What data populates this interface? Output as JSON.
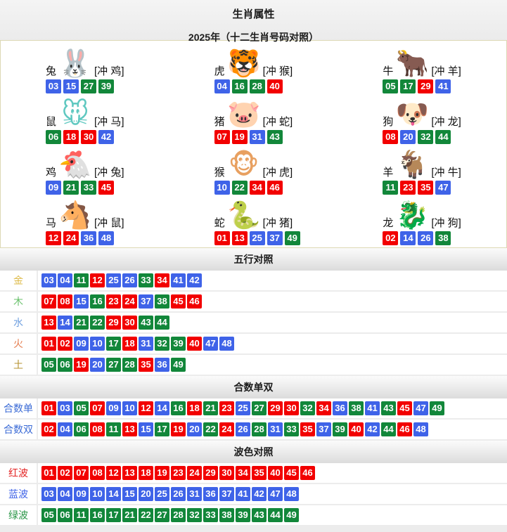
{
  "header": {
    "title": "生肖属性",
    "subtitle": "2025年（十二生肖号码对照）"
  },
  "zodiac_panel": {
    "cells": [
      {
        "name": "兔",
        "clash": "[冲 鸡]",
        "icon": "rabbit-icon",
        "icon_glyph": "🐰",
        "icon_color": "#9f8fe8",
        "numbers": [
          "03",
          "15",
          "27",
          "39"
        ]
      },
      {
        "name": "虎",
        "clash": "[冲 猴]",
        "icon": "tiger-icon",
        "icon_glyph": "🐯",
        "icon_color": "#e8962e",
        "numbers": [
          "04",
          "16",
          "28",
          "40"
        ]
      },
      {
        "name": "牛",
        "clash": "[冲 羊]",
        "icon": "ox-icon",
        "icon_glyph": "🐂",
        "icon_color": "#ef8fa0",
        "numbers": [
          "05",
          "17",
          "29",
          "41"
        ]
      },
      {
        "name": "鼠",
        "clash": "[冲 马]",
        "icon": "rat-icon",
        "icon_glyph": "🐭",
        "icon_color": "#5fc8c0",
        "numbers": [
          "06",
          "18",
          "30",
          "42"
        ]
      },
      {
        "name": "猪",
        "clash": "[冲 蛇]",
        "icon": "pig-icon",
        "icon_glyph": "🐷",
        "icon_color": "#f2a0c0",
        "numbers": [
          "07",
          "19",
          "31",
          "43"
        ]
      },
      {
        "name": "狗",
        "clash": "[冲 龙]",
        "icon": "dog-icon",
        "icon_glyph": "🐶",
        "icon_color": "#8fb8e8",
        "numbers": [
          "08",
          "20",
          "32",
          "44"
        ]
      },
      {
        "name": "鸡",
        "clash": "[冲 兔]",
        "icon": "rooster-icon",
        "icon_glyph": "🐔",
        "icon_color": "#c8a02e",
        "numbers": [
          "09",
          "21",
          "33",
          "45"
        ]
      },
      {
        "name": "猴",
        "clash": "[冲 虎]",
        "icon": "monkey-icon",
        "icon_glyph": "🐵",
        "icon_color": "#e8a060",
        "numbers": [
          "10",
          "22",
          "34",
          "46"
        ]
      },
      {
        "name": "羊",
        "clash": "[冲 牛]",
        "icon": "goat-icon",
        "icon_glyph": "🐐",
        "icon_color": "#e8c22e",
        "numbers": [
          "11",
          "23",
          "35",
          "47"
        ]
      },
      {
        "name": "马",
        "clash": "[冲 鼠]",
        "icon": "horse-icon",
        "icon_glyph": "🐴",
        "icon_color": "#d83020",
        "numbers": [
          "12",
          "24",
          "36",
          "48"
        ]
      },
      {
        "name": "蛇",
        "clash": "[冲 猪]",
        "icon": "snake-icon",
        "icon_glyph": "🐍",
        "icon_color": "#58a828",
        "numbers": [
          "01",
          "13",
          "25",
          "37",
          "49"
        ]
      },
      {
        "name": "龙",
        "clash": "[冲 狗]",
        "icon": "dragon-icon",
        "icon_glyph": "🐉",
        "icon_color": "#f08828",
        "numbers": [
          "02",
          "14",
          "26",
          "38"
        ]
      }
    ]
  },
  "sections": [
    {
      "title": "五行对照",
      "rows": [
        {
          "label": "金",
          "label_color": "#debb4a",
          "numbers": [
            "03",
            "04",
            "11",
            "12",
            "25",
            "26",
            "33",
            "34",
            "41",
            "42"
          ]
        },
        {
          "label": "木",
          "label_color": "#68c06a",
          "numbers": [
            "07",
            "08",
            "15",
            "16",
            "23",
            "24",
            "37",
            "38",
            "45",
            "46"
          ]
        },
        {
          "label": "水",
          "label_color": "#70a0e0",
          "numbers": [
            "13",
            "14",
            "21",
            "22",
            "29",
            "30",
            "43",
            "44"
          ]
        },
        {
          "label": "火",
          "label_color": "#e57e50",
          "numbers": [
            "01",
            "02",
            "09",
            "10",
            "17",
            "18",
            "31",
            "32",
            "39",
            "40",
            "47",
            "48"
          ]
        },
        {
          "label": "土",
          "label_color": "#b5922f",
          "numbers": [
            "05",
            "06",
            "19",
            "20",
            "27",
            "28",
            "35",
            "36",
            "49"
          ]
        }
      ]
    },
    {
      "title": "合数单双",
      "rows": [
        {
          "label": "合数单",
          "label_color": "#3b6bd6",
          "numbers": [
            "01",
            "03",
            "05",
            "07",
            "09",
            "10",
            "12",
            "14",
            "16",
            "18",
            "21",
            "23",
            "25",
            "27",
            "29",
            "30",
            "32",
            "34",
            "36",
            "38",
            "41",
            "43",
            "45",
            "47",
            "49"
          ]
        },
        {
          "label": "合数双",
          "label_color": "#3b6bd6",
          "numbers": [
            "02",
            "04",
            "06",
            "08",
            "11",
            "13",
            "15",
            "17",
            "19",
            "20",
            "22",
            "24",
            "26",
            "28",
            "31",
            "33",
            "35",
            "37",
            "39",
            "40",
            "42",
            "44",
            "46",
            "48"
          ]
        }
      ]
    },
    {
      "title": "波色对照",
      "rows": [
        {
          "label": "红波",
          "label_color": "#e32222",
          "numbers": [
            "01",
            "02",
            "07",
            "08",
            "12",
            "13",
            "18",
            "19",
            "23",
            "24",
            "29",
            "30",
            "34",
            "35",
            "40",
            "45",
            "46"
          ]
        },
        {
          "label": "蓝波",
          "label_color": "#3f63e8",
          "numbers": [
            "03",
            "04",
            "09",
            "10",
            "14",
            "15",
            "20",
            "25",
            "26",
            "31",
            "36",
            "37",
            "41",
            "42",
            "47",
            "48"
          ]
        },
        {
          "label": "绿波",
          "label_color": "#2a9647",
          "numbers": [
            "05",
            "06",
            "11",
            "16",
            "17",
            "21",
            "22",
            "27",
            "28",
            "32",
            "33",
            "38",
            "39",
            "43",
            "44",
            "49"
          ]
        }
      ]
    }
  ],
  "wave_colors": {
    "red": {
      "hex": "#f20000",
      "numbers": [
        "01",
        "02",
        "07",
        "08",
        "12",
        "13",
        "18",
        "19",
        "23",
        "24",
        "29",
        "30",
        "34",
        "35",
        "40",
        "45",
        "46"
      ]
    },
    "blue": {
      "hex": "#3f63e8",
      "numbers": [
        "03",
        "04",
        "09",
        "10",
        "14",
        "15",
        "20",
        "25",
        "26",
        "31",
        "36",
        "37",
        "41",
        "42",
        "47",
        "48"
      ]
    },
    "green": {
      "hex": "#12873a",
      "numbers": [
        "05",
        "06",
        "11",
        "16",
        "17",
        "21",
        "22",
        "27",
        "28",
        "32",
        "33",
        "38",
        "39",
        "43",
        "44",
        "49"
      ]
    }
  }
}
